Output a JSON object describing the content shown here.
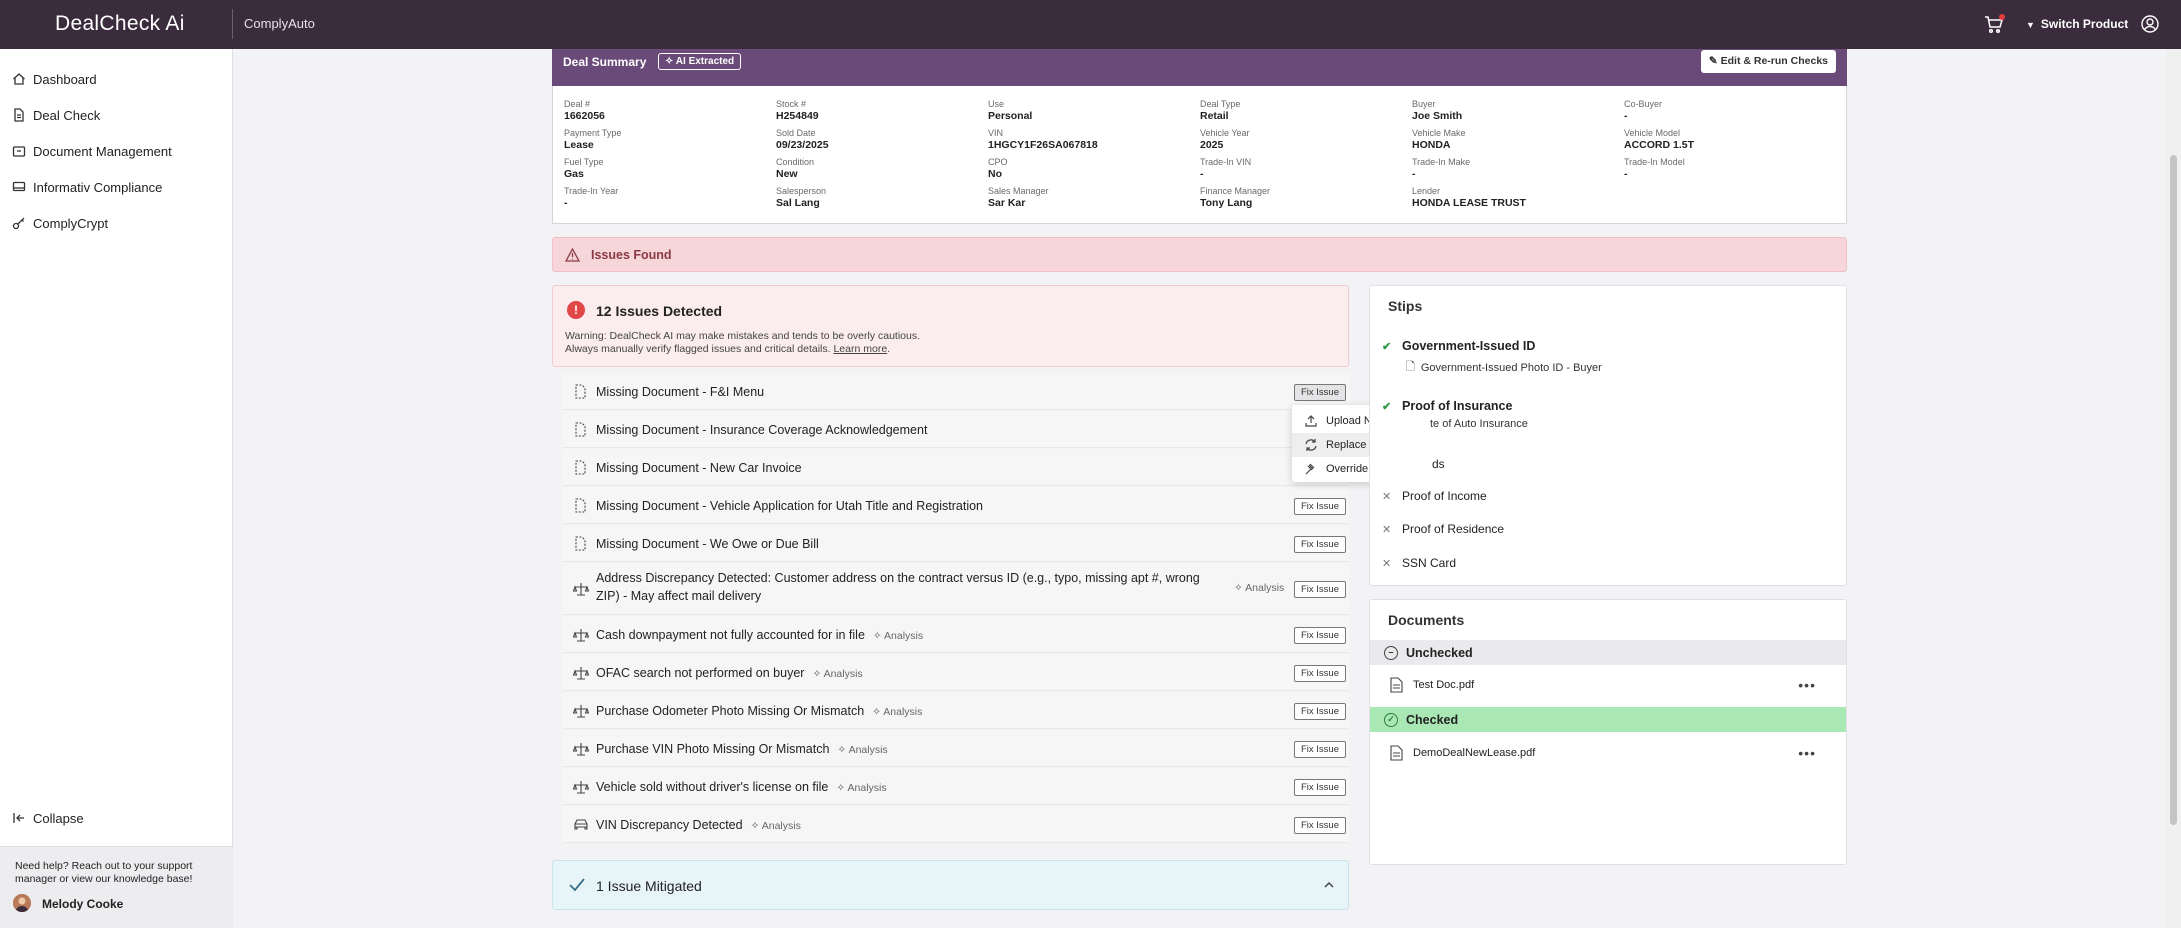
{
  "topbar": {
    "logo": "DealCheck Ai",
    "app_name": "ComplyAuto",
    "switch_product": "Switch Product"
  },
  "sidebar": {
    "items": [
      {
        "label": "Dashboard",
        "icon": "home-icon"
      },
      {
        "label": "Deal Check",
        "icon": "document-icon"
      },
      {
        "label": "Document Management",
        "icon": "folder-icon"
      },
      {
        "label": "Informativ Compliance",
        "icon": "monitor-icon"
      },
      {
        "label": "ComplyCrypt",
        "icon": "key-icon"
      }
    ],
    "collapse": "Collapse",
    "help_text": "Need help? Reach out to your support manager or view our knowledge base!",
    "user_name": "Melody Cooke"
  },
  "summary": {
    "title": "Deal Summary",
    "ai_badge": "AI Extracted",
    "rerun": "Edit & Re-run Checks",
    "fields": [
      {
        "label": "Deal #",
        "value": "1662056"
      },
      {
        "label": "Stock #",
        "value": "H254849"
      },
      {
        "label": "Use",
        "value": "Personal"
      },
      {
        "label": "Deal Type",
        "value": "Retail"
      },
      {
        "label": "Buyer",
        "value": "Joe Smith"
      },
      {
        "label": "Co-Buyer",
        "value": "-"
      },
      {
        "label": "Payment Type",
        "value": "Lease"
      },
      {
        "label": "Sold Date",
        "value": "09/23/2025"
      },
      {
        "label": "VIN",
        "value": "1HGCY1F26SA067818"
      },
      {
        "label": "Vehicle Year",
        "value": "2025"
      },
      {
        "label": "Vehicle Make",
        "value": "HONDA"
      },
      {
        "label": "Vehicle Model",
        "value": "ACCORD 1.5T"
      },
      {
        "label": "Fuel Type",
        "value": "Gas"
      },
      {
        "label": "Condition",
        "value": "New"
      },
      {
        "label": "CPO",
        "value": "No"
      },
      {
        "label": "Trade-In VIN",
        "value": "-"
      },
      {
        "label": "Trade-In Make",
        "value": "-"
      },
      {
        "label": "Trade-In Model",
        "value": "-"
      },
      {
        "label": "Trade-In Year",
        "value": "-"
      },
      {
        "label": "Salesperson",
        "value": "Sal Lang"
      },
      {
        "label": "Sales Manager",
        "value": "Sar Kar"
      },
      {
        "label": "Finance Manager",
        "value": "Tony Lang"
      },
      {
        "label": "Lender",
        "value": "HONDA LEASE TRUST"
      }
    ]
  },
  "issues_banner": "Issues Found",
  "detected": {
    "title": "12 Issues Detected",
    "warning_line1": "Warning: DealCheck AI may make mistakes and tends to be overly cautious.",
    "warning_line2": "Always manually verify flagged issues and critical details.",
    "learn_more": "Learn more",
    "period": "."
  },
  "issues": [
    {
      "label": "Missing Document - F&I Menu",
      "analysis": "",
      "fix": "Fix Issue",
      "icon": "missing-document-icon"
    },
    {
      "label": "Missing Document - Insurance Coverage Acknowledgement",
      "analysis": "",
      "fix": "",
      "icon": "missing-document-icon"
    },
    {
      "label": "Missing Document - New Car Invoice",
      "analysis": "",
      "fix": "",
      "icon": "missing-document-icon"
    },
    {
      "label": "Missing Document - Vehicle Application for Utah Title and Registration",
      "analysis": "",
      "fix": "Fix Issue",
      "icon": "missing-document-icon"
    },
    {
      "label": "Missing Document - We Owe or Due Bill",
      "analysis": "",
      "fix": "Fix Issue",
      "icon": "missing-document-icon"
    },
    {
      "label": "Address Discrepancy Detected: Customer address on the contract versus ID (e.g., typo, missing apt #, wrong ZIP) - May affect mail delivery",
      "analysis": "Analysis",
      "fix": "Fix Issue",
      "icon": "scale-icon"
    },
    {
      "label": "Cash downpayment not fully accounted for in file",
      "analysis": "Analysis",
      "fix": "Fix Issue",
      "icon": "scale-icon"
    },
    {
      "label": "OFAC search not performed on buyer",
      "analysis": "Analysis",
      "fix": "Fix Issue",
      "icon": "scale-icon"
    },
    {
      "label": "Purchase Odometer Photo Missing Or Mismatch",
      "analysis": "Analysis",
      "fix": "Fix Issue",
      "icon": "scale-icon"
    },
    {
      "label": "Purchase VIN Photo Missing Or Mismatch",
      "analysis": "Analysis",
      "fix": "Fix Issue",
      "icon": "scale-icon"
    },
    {
      "label": "Vehicle sold without driver's license on file",
      "analysis": "Analysis",
      "fix": "Fix Issue",
      "icon": "scale-icon"
    },
    {
      "label": "VIN Discrepancy Detected",
      "analysis": "Analysis",
      "fix": "Fix Issue",
      "icon": "car-icon"
    }
  ],
  "fix_menu": {
    "items": [
      "Upload New File",
      "Replace Existing Pages",
      "Override"
    ]
  },
  "mitigated": "1 Issue Mitigated",
  "stips": {
    "title": "Stips",
    "government_id": "Government-Issued ID",
    "government_id_sub": "Government-Issued Photo ID - Buyer",
    "proof_insurance": "Proof of Insurance",
    "proof_insurance_sub": "te of Auto Insurance",
    "partial_item": "ds",
    "proof_income": "Proof of Income",
    "proof_residence": "Proof of Residence",
    "ssn_card": "SSN Card"
  },
  "documents": {
    "title": "Documents",
    "unchecked": "Unchecked",
    "unchecked_files": [
      "Test Doc.pdf"
    ],
    "checked": "Checked",
    "checked_files": [
      "DemoDealNewLease.pdf"
    ],
    "unchecked_color": "#eaeaed",
    "checked_color": "#a9e8b4"
  }
}
